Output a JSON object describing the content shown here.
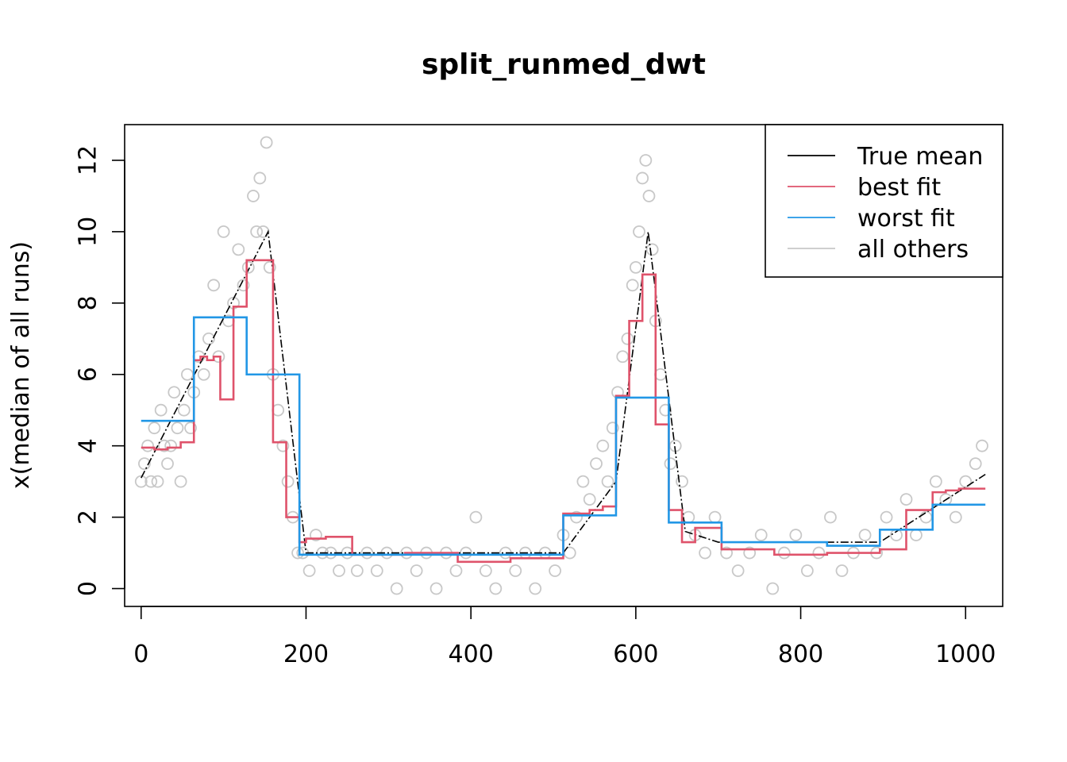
{
  "chart_data": {
    "type": "line",
    "title": "split_runmed_dwt",
    "xlabel": "",
    "ylabel": "x(median of all runs)",
    "xlim": [
      -20,
      1045
    ],
    "ylim": [
      -0.5,
      13
    ],
    "x_ticks": [
      0,
      200,
      400,
      600,
      800,
      1000
    ],
    "y_ticks": [
      0,
      2,
      4,
      6,
      8,
      10,
      12
    ],
    "legend_position": "top-right",
    "colors": {
      "true_mean": "#000000",
      "best_fit": "#DF536B",
      "worst_fit": "#2297E6",
      "all_others": "#C8C8C8"
    },
    "legend": [
      {
        "label": "True mean",
        "color": "#000000"
      },
      {
        "label": "best fit",
        "color": "#DF536B"
      },
      {
        "label": "worst fit",
        "color": "#2297E6"
      },
      {
        "label": "all others",
        "color": "#C8C8C8"
      }
    ],
    "series": [
      {
        "name": "True mean",
        "style": "line",
        "x": [
          0,
          154,
          200,
          512,
          576,
          615,
          660,
          700,
          896,
          1024
        ],
        "y": [
          3.1,
          10.0,
          1.0,
          1.0,
          3.0,
          10.0,
          1.6,
          1.3,
          1.3,
          3.2
        ]
      },
      {
        "name": "best fit",
        "style": "step",
        "x": [
          0,
          16,
          32,
          48,
          64,
          72,
          80,
          88,
          96,
          112,
          128,
          160,
          176,
          192,
          200,
          224,
          256,
          320,
          384,
          448,
          512,
          544,
          560,
          576,
          592,
          608,
          624,
          640,
          656,
          672,
          704,
          768,
          832,
          896,
          928,
          960,
          976,
          992,
          1024
        ],
        "y": [
          3.95,
          3.9,
          3.95,
          4.1,
          6.4,
          6.5,
          6.4,
          6.5,
          5.3,
          7.9,
          9.2,
          4.1,
          2.0,
          1.3,
          1.4,
          1.45,
          0.95,
          1.0,
          0.75,
          0.85,
          2.1,
          2.2,
          2.3,
          5.4,
          7.5,
          8.8,
          4.6,
          2.2,
          1.3,
          1.7,
          1.1,
          0.95,
          1.0,
          1.1,
          2.2,
          2.7,
          2.75,
          2.8,
          2.8
        ]
      },
      {
        "name": "worst fit",
        "style": "step",
        "x": [
          0,
          64,
          128,
          192,
          256,
          320,
          384,
          448,
          512,
          576,
          640,
          704,
          768,
          832,
          896,
          960,
          1024
        ],
        "y": [
          4.7,
          7.6,
          6.0,
          0.95,
          0.95,
          0.95,
          0.95,
          0.95,
          2.05,
          5.35,
          1.85,
          1.3,
          1.3,
          1.2,
          1.65,
          2.35,
          2.35
        ]
      },
      {
        "name": "all others",
        "style": "scatter",
        "x": [
          0,
          4,
          8,
          12,
          16,
          20,
          24,
          28,
          32,
          36,
          40,
          44,
          48,
          52,
          56,
          60,
          64,
          70,
          76,
          82,
          88,
          94,
          100,
          106,
          112,
          118,
          124,
          130,
          136,
          140,
          144,
          148,
          152,
          156,
          160,
          166,
          172,
          178,
          184,
          190,
          196,
          204,
          212,
          220,
          230,
          240,
          250,
          262,
          274,
          286,
          298,
          310,
          322,
          334,
          346,
          358,
          370,
          382,
          394,
          406,
          418,
          430,
          442,
          454,
          466,
          478,
          490,
          502,
          512,
          520,
          528,
          536,
          544,
          552,
          560,
          566,
          572,
          578,
          584,
          590,
          596,
          600,
          604,
          608,
          612,
          616,
          620,
          624,
          630,
          636,
          642,
          648,
          656,
          664,
          672,
          684,
          696,
          710,
          724,
          738,
          752,
          766,
          780,
          794,
          808,
          822,
          836,
          850,
          864,
          878,
          892,
          904,
          916,
          928,
          940,
          952,
          964,
          976,
          988,
          1000,
          1012,
          1020
        ],
        "y": [
          3.0,
          3.5,
          4.0,
          3.0,
          4.5,
          3.0,
          5.0,
          4.0,
          3.5,
          4.0,
          5.5,
          4.5,
          3.0,
          5.0,
          6.0,
          4.5,
          5.5,
          6.5,
          6.0,
          7.0,
          8.5,
          6.5,
          10.0,
          7.5,
          8.0,
          9.5,
          8.5,
          9.0,
          11.0,
          10.0,
          11.5,
          10.0,
          12.5,
          9.0,
          6.0,
          5.0,
          4.0,
          3.0,
          2.0,
          1.0,
          1.0,
          0.5,
          1.5,
          1.0,
          1.0,
          0.5,
          1.0,
          0.5,
          1.0,
          0.5,
          1.0,
          0.0,
          1.0,
          0.5,
          1.0,
          0.0,
          1.0,
          0.5,
          1.0,
          2.0,
          0.5,
          0.0,
          1.0,
          0.5,
          1.0,
          0.0,
          1.0,
          0.5,
          1.5,
          1.0,
          2.0,
          3.0,
          2.5,
          3.5,
          4.0,
          3.0,
          4.5,
          5.5,
          6.5,
          7.0,
          8.5,
          9.0,
          10.0,
          11.5,
          12.0,
          11.0,
          9.5,
          7.5,
          6.0,
          5.0,
          3.5,
          4.0,
          3.0,
          2.0,
          1.5,
          1.0,
          2.0,
          1.0,
          0.5,
          1.0,
          1.5,
          0.0,
          1.0,
          1.5,
          0.5,
          1.0,
          2.0,
          0.5,
          1.0,
          1.5,
          1.0,
          2.0,
          1.5,
          2.5,
          1.5,
          2.0,
          3.0,
          2.5,
          2.0,
          3.0,
          3.5,
          4.0
        ]
      }
    ]
  }
}
